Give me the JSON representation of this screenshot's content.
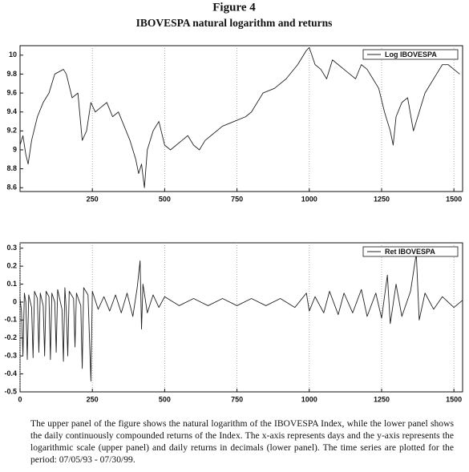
{
  "figure": {
    "label": "Figure 4",
    "title": "IBOVESPA natural logarithm and returns"
  },
  "caption": "The upper panel of the figure shows the natural logarithm of the IBOVESPA Index, while the lower panel shows the daily continuously compounded returns of the Index. The x-axis represents days and the y-axis represents the logarithmic scale (upper panel) and daily returns in decimals (lower panel). The time series are plotted for the period: 07/05/93 - 07/30/99.",
  "chart_data": [
    {
      "type": "line",
      "legend": "upper right",
      "grid": "x",
      "xlim": [
        0,
        1530
      ],
      "ylim": [
        8.56,
        10.1
      ],
      "xticks": [
        250,
        500,
        750,
        1000,
        1250,
        1500
      ],
      "yticks": [
        8.6,
        8.8,
        9,
        9.2,
        9.4,
        9.6,
        9.8,
        10
      ],
      "x": [
        0,
        10,
        20,
        28,
        40,
        60,
        80,
        100,
        120,
        150,
        160,
        180,
        200,
        215,
        230,
        245,
        260,
        280,
        300,
        320,
        340,
        360,
        380,
        400,
        410,
        420,
        430,
        440,
        460,
        480,
        500,
        520,
        540,
        560,
        580,
        600,
        620,
        640,
        660,
        700,
        740,
        780,
        800,
        840,
        880,
        920,
        960,
        990,
        1000,
        1020,
        1040,
        1060,
        1080,
        1100,
        1120,
        1140,
        1160,
        1180,
        1200,
        1220,
        1240,
        1260,
        1280,
        1290,
        1300,
        1320,
        1340,
        1360,
        1380,
        1400,
        1420,
        1440,
        1460,
        1480,
        1500,
        1520
      ],
      "series": [
        {
          "name": "Log IBOVESPA",
          "color": "#222222",
          "values": [
            9.05,
            9.15,
            8.95,
            8.85,
            9.1,
            9.35,
            9.5,
            9.6,
            9.8,
            9.85,
            9.8,
            9.55,
            9.6,
            9.1,
            9.2,
            9.5,
            9.4,
            9.45,
            9.5,
            9.35,
            9.4,
            9.25,
            9.1,
            8.9,
            8.75,
            8.85,
            8.6,
            9.0,
            9.2,
            9.3,
            9.05,
            9.0,
            9.05,
            9.1,
            9.15,
            9.05,
            9.0,
            9.1,
            9.15,
            9.25,
            9.3,
            9.35,
            9.4,
            9.6,
            9.65,
            9.75,
            9.9,
            10.05,
            10.08,
            9.9,
            9.85,
            9.75,
            9.95,
            9.9,
            9.85,
            9.8,
            9.75,
            9.9,
            9.85,
            9.75,
            9.65,
            9.4,
            9.2,
            9.05,
            9.35,
            9.5,
            9.55,
            9.2,
            9.4,
            9.6,
            9.7,
            9.8,
            9.9,
            9.9,
            9.85,
            9.8
          ]
        }
      ]
    },
    {
      "type": "line",
      "legend": "upper right",
      "grid": "x",
      "xlim": [
        0,
        1530
      ],
      "ylim": [
        -0.5,
        0.33
      ],
      "xticks": [
        0,
        250,
        500,
        750,
        1000,
        1250,
        1500
      ],
      "yticks": [
        -0.5,
        -0.4,
        -0.3,
        -0.2,
        -0.1,
        0,
        0.1,
        0.2,
        0.3
      ],
      "x": [
        0,
        5,
        10,
        15,
        20,
        25,
        30,
        40,
        45,
        50,
        60,
        65,
        70,
        80,
        85,
        90,
        100,
        105,
        110,
        120,
        125,
        130,
        145,
        150,
        155,
        160,
        165,
        170,
        185,
        190,
        195,
        210,
        215,
        220,
        235,
        245,
        250,
        270,
        290,
        310,
        330,
        350,
        370,
        390,
        405,
        415,
        420,
        425,
        440,
        460,
        480,
        500,
        550,
        600,
        650,
        700,
        750,
        800,
        850,
        900,
        950,
        990,
        1000,
        1020,
        1050,
        1070,
        1100,
        1120,
        1150,
        1180,
        1200,
        1230,
        1250,
        1270,
        1280,
        1300,
        1320,
        1350,
        1370,
        1380,
        1400,
        1430,
        1460,
        1500,
        1530
      ],
      "series": [
        {
          "name": "Ret IBOVESPA",
          "color": "#222222",
          "values": [
            0.02,
            -0.05,
            -0.3,
            0.05,
            0.0,
            -0.32,
            0.04,
            -0.03,
            -0.31,
            0.06,
            0.02,
            -0.28,
            0.05,
            -0.02,
            -0.3,
            0.06,
            0.03,
            -0.32,
            0.05,
            0.0,
            -0.28,
            0.07,
            -0.04,
            -0.33,
            0.08,
            -0.05,
            -0.3,
            0.06,
            0.02,
            -0.25,
            0.05,
            -0.02,
            -0.37,
            0.08,
            0.04,
            -0.44,
            0.06,
            -0.04,
            0.03,
            -0.05,
            0.04,
            -0.06,
            0.05,
            -0.08,
            0.08,
            0.23,
            -0.15,
            0.1,
            -0.06,
            0.04,
            -0.03,
            0.03,
            -0.02,
            0.02,
            -0.02,
            0.02,
            -0.02,
            0.02,
            -0.02,
            0.02,
            -0.03,
            0.05,
            -0.05,
            0.03,
            -0.06,
            0.06,
            -0.07,
            0.05,
            -0.06,
            0.07,
            -0.08,
            0.05,
            -0.09,
            0.15,
            -0.12,
            0.1,
            -0.08,
            0.06,
            0.27,
            -0.1,
            0.05,
            -0.04,
            0.03,
            -0.03,
            0.01
          ]
        }
      ]
    }
  ]
}
